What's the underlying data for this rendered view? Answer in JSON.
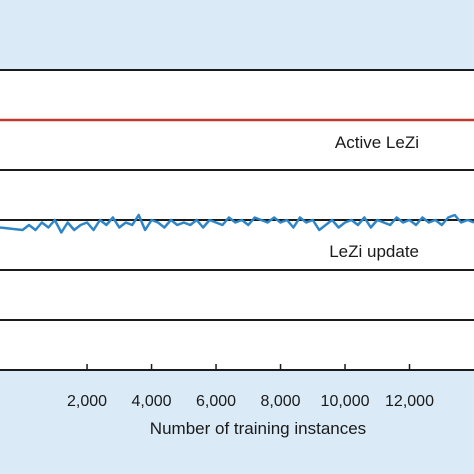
{
  "chart_data": {
    "type": "line",
    "xlabel": "Number of training instances",
    "ylabel": "",
    "xlim": [
      -700,
      14000
    ],
    "ylim": [
      -5,
      100
    ],
    "x_ticks": [
      2000,
      4000,
      6000,
      8000,
      10000,
      12000
    ],
    "x_tick_labels": [
      "2,000",
      "4,000",
      "6,000",
      "8,000",
      "10,000",
      "12,000"
    ],
    "gridlines_y": [
      0,
      20,
      40,
      60,
      80
    ],
    "grid": true,
    "annotations": [
      {
        "text": "Active LeZi",
        "x": 12900,
        "y": 71.5
      },
      {
        "text": "LeZi update",
        "x": 12900,
        "y": 32.5
      }
    ],
    "series": [
      {
        "color": "#c0392b",
        "x": [
          -700,
          14000
        ],
        "y": [
          80,
          80
        ]
      },
      {
        "color": "#2e86c9",
        "x": [
          -700,
          0,
          200,
          400,
          600,
          800,
          1000,
          1200,
          1400,
          1600,
          1800,
          2000,
          2200,
          2400,
          2600,
          2800,
          3000,
          3200,
          3400,
          3600,
          3800,
          4000,
          4200,
          4400,
          4600,
          4800,
          5000,
          5200,
          5400,
          5600,
          5800,
          6000,
          6200,
          6400,
          6600,
          6800,
          7000,
          7200,
          7400,
          7600,
          7800,
          8000,
          8200,
          8400,
          8600,
          8800,
          9000,
          9200,
          9400,
          9600,
          9800,
          10000,
          10200,
          10400,
          10600,
          10800,
          11000,
          11200,
          11400,
          11600,
          11800,
          12000,
          12200,
          12400,
          12600,
          12800,
          13000,
          13200,
          13400,
          13600,
          13800,
          14000
        ],
        "y": [
          37,
          36,
          38,
          36,
          39,
          37,
          40,
          35,
          39,
          36,
          38,
          39,
          36,
          40,
          38,
          41,
          37,
          39,
          38,
          42,
          36,
          40,
          39,
          37,
          40,
          38,
          39,
          38,
          40,
          37,
          40,
          39,
          38,
          41,
          39,
          40,
          38,
          41,
          40,
          39,
          41,
          39,
          40,
          37,
          41,
          39,
          40,
          36,
          38,
          40,
          37,
          39,
          40,
          38,
          41,
          37,
          40,
          39,
          38,
          41,
          39,
          40,
          38,
          41,
          39,
          40,
          38,
          41,
          42,
          39,
          40,
          39
        ]
      }
    ]
  }
}
